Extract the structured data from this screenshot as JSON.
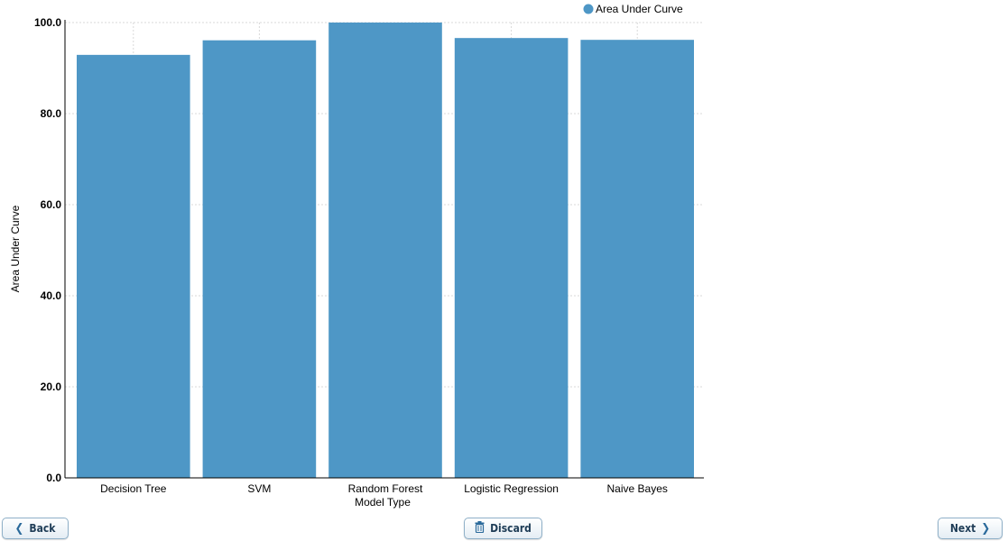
{
  "chart_data": {
    "type": "bar",
    "categories": [
      "Decision Tree",
      "SVM",
      "Random Forest",
      "Logistic Regression",
      "Naive Bayes"
    ],
    "series": [
      {
        "name": "Area Under Curve",
        "values": [
          92.9,
          96.1,
          100.0,
          96.6,
          96.2
        ]
      }
    ],
    "xlabel": "Model Type",
    "ylabel": "Area Under Curve",
    "ylim": [
      0,
      100
    ],
    "yticks": [
      "0.0",
      "20.0",
      "40.0",
      "60.0",
      "80.0",
      "100.0"
    ],
    "ytick_values": [
      0,
      20,
      40,
      60,
      80,
      100
    ],
    "grid": true,
    "legend_position": "top-right",
    "bar_color": "#4e97c6"
  },
  "nav": {
    "back_label": "Back",
    "discard_label": "Discard",
    "next_label": "Next"
  }
}
